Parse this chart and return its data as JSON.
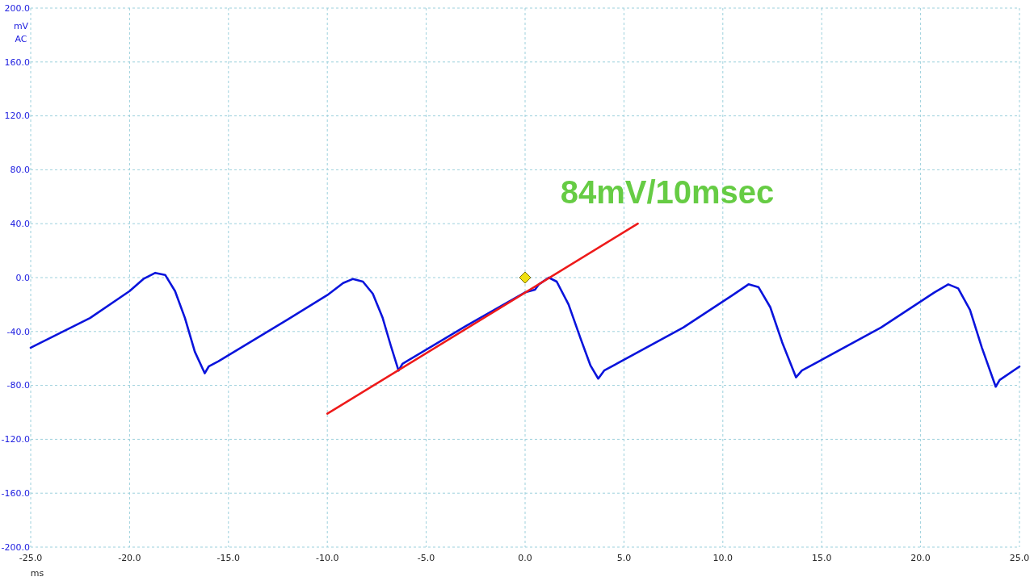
{
  "chart_data": {
    "type": "line",
    "xlabel": "ms",
    "ylabel": "mV AC",
    "xlim": [
      -25,
      25
    ],
    "ylim": [
      -200,
      200
    ],
    "xticks": [
      {
        "value": -25,
        "label": "-25.0"
      },
      {
        "value": -20,
        "label": "-20.0"
      },
      {
        "value": -15,
        "label": "-15.0"
      },
      {
        "value": -10,
        "label": "-10.0"
      },
      {
        "value": -5,
        "label": "-5.0"
      },
      {
        "value": 0,
        "label": "0.0"
      },
      {
        "value": 5,
        "label": "5.0"
      },
      {
        "value": 10,
        "label": "10.0"
      },
      {
        "value": 15,
        "label": "15.0"
      },
      {
        "value": 20,
        "label": "20.0"
      },
      {
        "value": 25,
        "label": "25.0"
      }
    ],
    "yticks": [
      {
        "value": -200,
        "label": "-200.0"
      },
      {
        "value": -160,
        "label": "-160.0"
      },
      {
        "value": -120,
        "label": "-120.0"
      },
      {
        "value": -80,
        "label": "-80.0"
      },
      {
        "value": -40,
        "label": "-40.0"
      },
      {
        "value": 0,
        "label": "0.0"
      },
      {
        "value": 40,
        "label": "40.0"
      },
      {
        "value": 80,
        "label": "80.0"
      },
      {
        "value": 120,
        "label": "120.0"
      },
      {
        "value": 160,
        "label": "160.0"
      },
      {
        "value": 200,
        "label": "200.0"
      }
    ],
    "grid": true,
    "series": [
      {
        "color": "#0a14dc",
        "x": [
          -25,
          -22,
          -20,
          -19.3,
          -18.7,
          -18.2,
          -17.7,
          -17.2,
          -16.7,
          -16.2,
          -16,
          -15.5,
          -12,
          -10,
          -9.2,
          -8.7,
          -8.2,
          -7.7,
          -7.2,
          -6.8,
          -6.4,
          -6.2,
          -3,
          0,
          0.5,
          0.7,
          1.2,
          1.6,
          2.2,
          2.8,
          3.3,
          3.7,
          4,
          8,
          10.5,
          11.3,
          11.8,
          12.4,
          13,
          13.7,
          14,
          18,
          20.7,
          21.4,
          21.9,
          22.5,
          23.1,
          23.8,
          24,
          25
        ],
        "values": [
          -52,
          -30,
          -10,
          -1,
          3.5,
          2,
          -10,
          -30,
          -55,
          -71,
          -66,
          -62,
          -31,
          -13,
          -4,
          -1,
          -3,
          -12,
          -30,
          -50,
          -69,
          -64,
          -36,
          -11,
          -9,
          -5,
          0,
          -3,
          -20,
          -45,
          -65,
          -75,
          -69,
          -37,
          -13,
          -5,
          -7,
          -22,
          -48,
          -74,
          -69,
          -37,
          -11,
          -5,
          -8,
          -24,
          -52,
          -81,
          -76,
          -66
        ]
      },
      {
        "color": "#ee1a1a",
        "x": [
          -10,
          5.7
        ],
        "values": [
          -101,
          40
        ]
      },
      {
        "type": "scatter",
        "color": "#f0e010",
        "marker": "diamond",
        "x": [
          0
        ],
        "values": [
          0
        ]
      }
    ],
    "annotations": [
      "84mV/10msec"
    ]
  }
}
